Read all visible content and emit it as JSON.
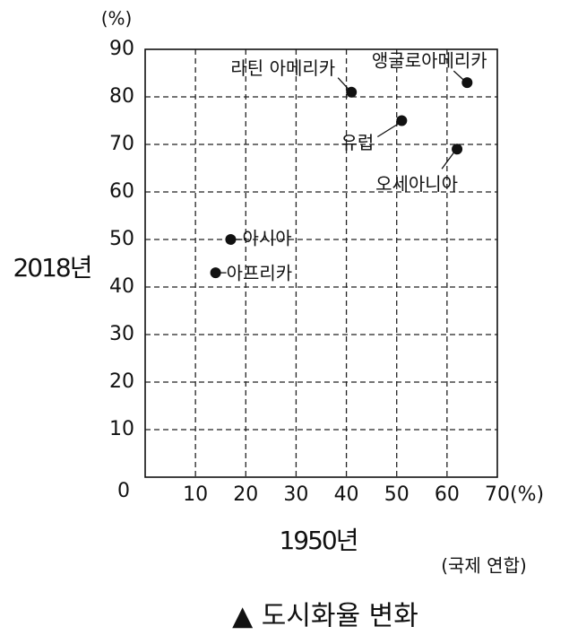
{
  "chart_data": {
    "type": "scatter",
    "title": "▲ 도시화율 변화",
    "x_label": "1950년",
    "y_label": "2018년",
    "y_unit": "(%)",
    "source": "(국제 연합)",
    "labels": [
      "라틴 아메리카",
      "앵글로아메리카",
      "유럽",
      "오세아니아",
      "아시아",
      "아프리카"
    ],
    "x": [
      41,
      64,
      51,
      62,
      17,
      14
    ],
    "y": [
      81,
      83,
      75,
      69,
      50,
      43
    ],
    "color": "#111111",
    "xlim": [
      0,
      70
    ],
    "ylim": [
      0,
      90
    ],
    "xticks": [
      10,
      20,
      30,
      40,
      50,
      60,
      {
        "value": 70,
        "label": "70(%)"
      }
    ],
    "yticks": [
      0,
      10,
      20,
      30,
      40,
      50,
      60,
      70,
      80,
      90
    ],
    "grid": true
  }
}
